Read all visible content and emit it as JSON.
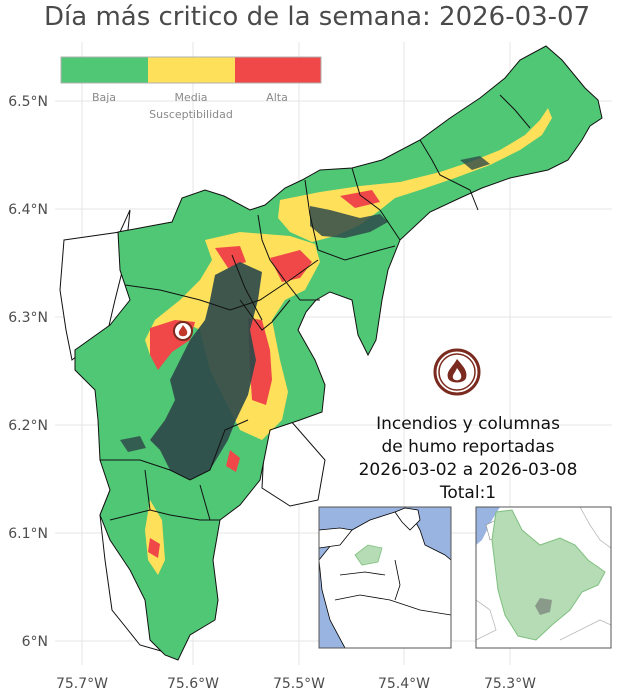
{
  "title": "Día más critico de la semana: 2026-03-07",
  "legend": {
    "title": "Susceptibilidad",
    "items": [
      {
        "label": "Baja",
        "color": "#4fc775"
      },
      {
        "label": "Media",
        "color": "#ffe05a"
      },
      {
        "label": "Alta",
        "color": "#f04848"
      }
    ]
  },
  "axes": {
    "y_ticks": [
      "6.5°N",
      "6.4°N",
      "6.3°N",
      "6.2°N",
      "6.1°N",
      "6°N"
    ],
    "x_ticks": [
      "75.7°W",
      "75.6°W",
      "75.5°W",
      "75.4°W",
      "75.3°W"
    ]
  },
  "info": {
    "line1": "Incendios y columnas",
    "line2": "de humo reportadas",
    "line3": "2026-03-02 a 2026-03-08",
    "line4": "Total:1"
  },
  "colors": {
    "low": "#4fc775",
    "medium": "#ffe05a",
    "high": "#f04848",
    "urban": "#2e4a4a",
    "fire": "#7a2a1e",
    "water": "#99b4e0",
    "inset_region": "#b6dcb6"
  },
  "icons": [
    "fire-icon",
    "fire-marker-icon"
  ]
}
